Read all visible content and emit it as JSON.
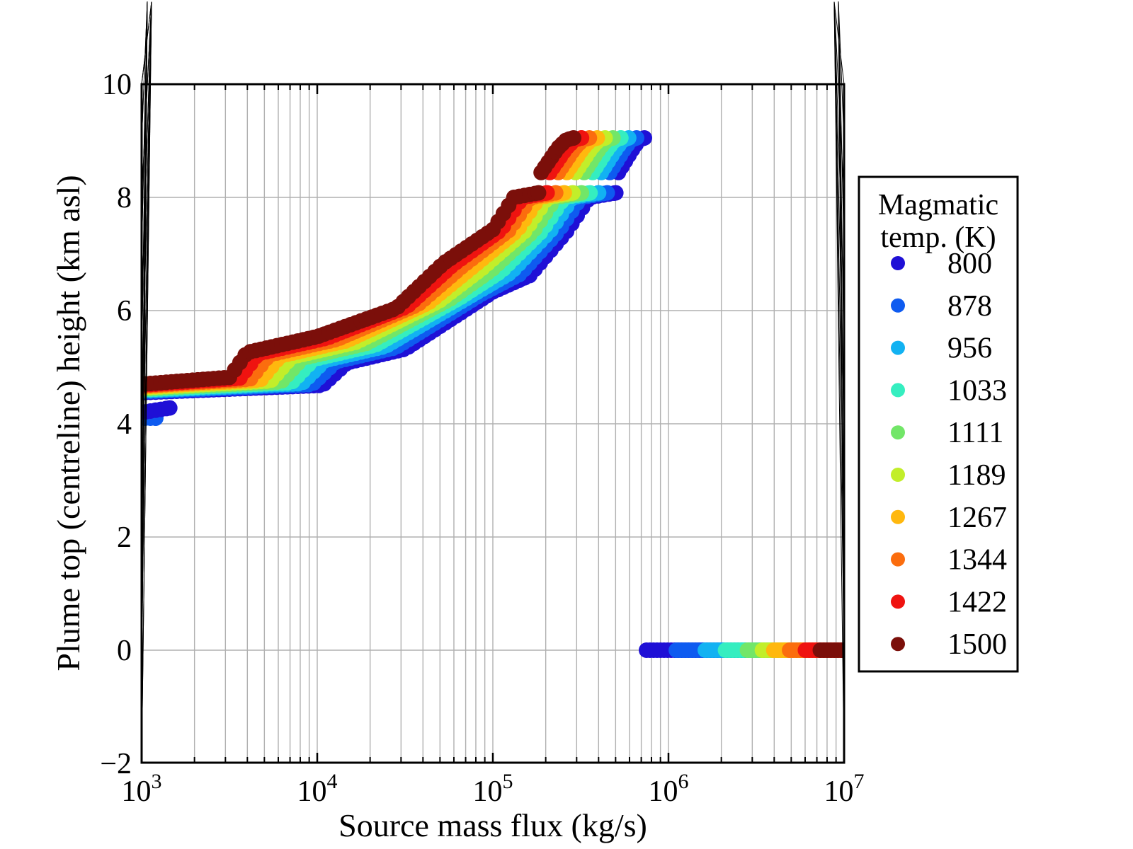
{
  "figure": {
    "background": "#ffffff",
    "frame_color": "#000000",
    "grid_color": "#b0b0b0"
  },
  "axes": {
    "xlabel": "Source mass flux (kg/s)",
    "ylabel": "Plume top (centreline) height (km asl)",
    "x_tick_labels": [
      {
        "base": "10",
        "exp": "3"
      },
      {
        "base": "10",
        "exp": "4"
      },
      {
        "base": "10",
        "exp": "5"
      },
      {
        "base": "10",
        "exp": "6"
      },
      {
        "base": "10",
        "exp": "7"
      }
    ],
    "y_tick_labels": [
      "−2",
      "0",
      "2",
      "4",
      "6",
      "8",
      "10"
    ],
    "y_tick_values": [
      -2,
      0,
      2,
      4,
      6,
      8,
      10
    ]
  },
  "legend": {
    "title_lines": [
      "Magmatic",
      "temp. (K)"
    ],
    "entries": [
      {
        "label": "800",
        "color": "#1f10d6"
      },
      {
        "label": "878",
        "color": "#0e5bf0"
      },
      {
        "label": "956",
        "color": "#12b2f2"
      },
      {
        "label": "1033",
        "color": "#35eec0"
      },
      {
        "label": "1111",
        "color": "#72e668"
      },
      {
        "label": "1189",
        "color": "#c2ee2a"
      },
      {
        "label": "1267",
        "color": "#ffb80e"
      },
      {
        "label": "1344",
        "color": "#fb6d0e"
      },
      {
        "label": "1422",
        "color": "#ef1310"
      },
      {
        "label": "1500",
        "color": "#7b0f0a"
      }
    ]
  },
  "chart_data": {
    "type": "scatter",
    "title": "",
    "xlabel": "Source mass flux (kg/s)",
    "ylabel": "Plume top (centreline) height (km asl)",
    "xscale": "log",
    "xlim": [
      1000,
      10000000
    ],
    "ylim": [
      -2,
      10
    ],
    "grid": true,
    "legend_position": "right",
    "legend_title": "Magmatic temp. (K)",
    "series": [
      {
        "name": "800",
        "temp": 800,
        "t": 0.0,
        "color": "#1f10d6",
        "collapse_onset_logx": 5.875,
        "curve_end_logx": 5.863
      },
      {
        "name": "878",
        "temp": 878,
        "t": 0.1111,
        "color": "#0e5bf0",
        "collapse_onset_logx": 6.045,
        "curve_end_logx": 5.818
      },
      {
        "name": "956",
        "temp": 956,
        "t": 0.2222,
        "color": "#12b2f2",
        "collapse_onset_logx": 6.21,
        "curve_end_logx": 5.773
      },
      {
        "name": "1033",
        "temp": 1033,
        "t": 0.3333,
        "color": "#35eec0",
        "collapse_onset_logx": 6.325,
        "curve_end_logx": 5.729
      },
      {
        "name": "1111",
        "temp": 1111,
        "t": 0.4444,
        "color": "#72e668",
        "collapse_onset_logx": 6.45,
        "curve_end_logx": 5.684
      },
      {
        "name": "1189",
        "temp": 1189,
        "t": 0.5556,
        "color": "#c2ee2a",
        "collapse_onset_logx": 6.535,
        "curve_end_logx": 5.639
      },
      {
        "name": "1267",
        "temp": 1267,
        "t": 0.6667,
        "color": "#ffb80e",
        "collapse_onset_logx": 6.6,
        "curve_end_logx": 5.594
      },
      {
        "name": "1344",
        "temp": 1344,
        "t": 0.7778,
        "color": "#fb6d0e",
        "collapse_onset_logx": 6.69,
        "curve_end_logx": 5.55
      },
      {
        "name": "1422",
        "temp": 1422,
        "t": 0.8889,
        "color": "#ef1310",
        "collapse_onset_logx": 6.78,
        "curve_end_logx": 5.505
      },
      {
        "name": "1500",
        "temp": 1500,
        "t": 1.0,
        "color": "#7b0f0a",
        "collapse_onset_logx": 6.865,
        "curve_end_logx": 5.46
      }
    ],
    "band_model": {
      "description": "Plume-rise curve per temperature: dots every dot_step in log10(flux) along a polyline interpolated (factor t) between the 800 K and 1500 K anchor sets. 'rise' ends at the plateau below the 8.1-8.4 km gap; 'top' is the branch above the gap ending at the 9.05 km cap.",
      "dot_step_logx": 0.03,
      "top_dot_step_logx": 0.02,
      "strip_dot_step_logx": 0.02,
      "marker_radius_px": 11,
      "anchors_800K": {
        "rise": [
          [
            3.0,
            4.55
          ],
          [
            4.03,
            4.68
          ],
          [
            4.17,
            5.08
          ],
          [
            4.5,
            5.32
          ],
          [
            5.0,
            6.33
          ],
          [
            5.21,
            6.62
          ],
          [
            5.42,
            7.4
          ],
          [
            5.55,
            8.0
          ],
          [
            5.7,
            8.08
          ]
        ],
        "top": [
          [
            5.715,
            8.44
          ],
          [
            5.8,
            8.87
          ],
          [
            5.835,
            9.02
          ],
          [
            5.863,
            9.05
          ]
        ]
      },
      "anchors_1500K": {
        "rise": [
          [
            3.0,
            4.7
          ],
          [
            3.5,
            4.82
          ],
          [
            3.6,
            5.26
          ],
          [
            4.0,
            5.54
          ],
          [
            4.45,
            6.04
          ],
          [
            4.72,
            6.84
          ],
          [
            5.0,
            7.43
          ],
          [
            5.12,
            8.0
          ],
          [
            5.26,
            8.08
          ]
        ],
        "top": [
          [
            5.275,
            8.44
          ],
          [
            5.37,
            8.87
          ],
          [
            5.42,
            9.02
          ],
          [
            5.46,
            9.05
          ]
        ]
      }
    },
    "low_cluster": [
      {
        "temp": 878,
        "logx_range": [
          3.0,
          3.08
        ],
        "y_range": [
          4.1,
          4.1
        ]
      },
      {
        "temp": 800,
        "logx_range": [
          3.0,
          3.16
        ],
        "y_range": [
          4.2,
          4.28
        ]
      }
    ],
    "collapse_strip": {
      "y": 0,
      "end_logx": 7.01,
      "note": "Column-collapse points at 0 km; each temperature starts at its collapse_onset_logx and is overplotted by hotter series, giving blue-to-dark-red segments left to right."
    }
  }
}
